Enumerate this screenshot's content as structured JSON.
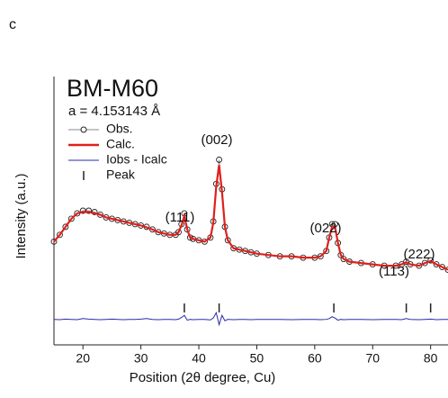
{
  "chart_data": {
    "type": "line",
    "panel_label": "c",
    "title": "BM-M60",
    "subtitle": "a = 4.153143 Å",
    "xlabel": "Position (2θ degree, Cu)",
    "ylabel": "Intensity (a.u.)",
    "xlim": [
      15,
      83
    ],
    "ylim": [
      0,
      100
    ],
    "xticks": [
      20,
      30,
      40,
      50,
      60,
      70,
      80
    ],
    "x": [
      15,
      16,
      17,
      18,
      19,
      20,
      21,
      22,
      23,
      24,
      25,
      26,
      27,
      28,
      29,
      30,
      31,
      32,
      33,
      34,
      35,
      36,
      36.5,
      37,
      37.5,
      38,
      38.5,
      39,
      40,
      41,
      42,
      42.5,
      43,
      43.5,
      44,
      44.5,
      45,
      46,
      47,
      48,
      49,
      50,
      52,
      54,
      56,
      58,
      60,
      61,
      62,
      62.5,
      63,
      63.5,
      64,
      64.5,
      65,
      66,
      68,
      70,
      72,
      74,
      75,
      75.8,
      76.5,
      78,
      79,
      80,
      81,
      82,
      83
    ],
    "series": [
      {
        "name": "Obs.",
        "color": "#222222",
        "values": [
          38.5,
          41,
          44,
          47,
          49,
          50,
          50,
          49.5,
          48.5,
          47.5,
          47,
          46.5,
          46,
          45.5,
          45,
          44.5,
          44,
          43,
          42,
          41.5,
          41,
          41,
          42,
          45,
          49,
          43,
          40,
          39.5,
          39,
          38.5,
          40,
          46,
          60,
          69,
          58,
          44,
          39,
          36,
          35.5,
          35,
          34.5,
          34,
          33.5,
          33,
          33,
          32.5,
          32.5,
          33,
          35,
          40,
          45,
          45,
          38,
          33.5,
          32,
          31,
          30.5,
          30,
          29.5,
          29.5,
          30,
          31,
          30,
          29.5,
          30.5,
          31.5,
          30,
          29,
          28
        ]
      },
      {
        "name": "Calc.",
        "color": "#e0201c",
        "values": [
          38.5,
          41,
          44,
          47,
          49,
          49.5,
          49.5,
          49,
          48.5,
          47.5,
          47,
          46.5,
          46,
          45.5,
          45,
          44.5,
          43.8,
          43,
          42,
          41.5,
          41,
          41,
          42,
          44.5,
          48,
          43,
          40,
          39.5,
          39,
          38.5,
          40,
          45.5,
          59,
          67,
          57,
          44,
          39,
          36,
          35.5,
          35,
          34.5,
          34,
          33.5,
          33,
          33,
          32.5,
          32.5,
          33,
          35,
          40,
          44,
          44,
          38,
          33.5,
          32,
          31,
          30.5,
          30,
          29.5,
          29.5,
          30,
          30.8,
          30,
          29.5,
          30.5,
          31.2,
          30,
          29,
          28
        ]
      },
      {
        "name": "Iobs - Icalc",
        "color": "#2b2ba8",
        "values": [
          9.5,
          9.4,
          9.6,
          9.5,
          9.4,
          9.8,
          9.6,
          9.5,
          9.4,
          9.5,
          9.6,
          9.5,
          9.4,
          9.5,
          9.5,
          9.6,
          9.8,
          9.5,
          9.4,
          9.5,
          9.5,
          9.4,
          9.6,
          10.2,
          11,
          9.2,
          9.5,
          9.4,
          9.5,
          9.5,
          9.3,
          10,
          12,
          7.5,
          11,
          9,
          9.5,
          9.4,
          9.5,
          9.5,
          9.4,
          9.5,
          9.5,
          9.5,
          9.4,
          9.5,
          9.5,
          9.4,
          9.5,
          9.8,
          10.5,
          10,
          9.2,
          9.5,
          9.4,
          9.5,
          9.5,
          9.4,
          9.5,
          9.5,
          9.4,
          9.8,
          9.5,
          9.4,
          9.5,
          9.6,
          9.4,
          9.5,
          9.5
        ]
      }
    ],
    "peak_label": "Peak",
    "peak_positions": [
      37.5,
      43.5,
      63.3,
      75.8,
      80
    ],
    "annotations": [
      "(111)",
      "(002)",
      "(022)",
      "(113)",
      "(222)"
    ]
  }
}
